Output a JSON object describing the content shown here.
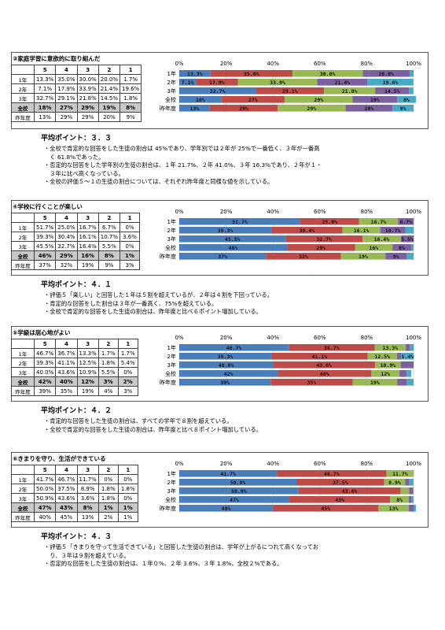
{
  "colors": {
    "s5": "#4a7ebb",
    "s4": "#be4b48",
    "s3": "#98b954",
    "s2": "#7d60a0",
    "s1": "#46aac5"
  },
  "axis_ticks": [
    "0%",
    "20%",
    "40%",
    "60%",
    "80%",
    "100%"
  ],
  "table_header": [
    "",
    "5",
    "4",
    "3",
    "2",
    "1"
  ],
  "sections": [
    {
      "title": "③家庭学習に意欲的に取り組んだ",
      "rows": [
        {
          "label": "1年",
          "v": [
            "13.3%",
            "35.0%",
            "30.0%",
            "20.0%",
            "1.7%"
          ]
        },
        {
          "label": "2年",
          "v": [
            "7.1%",
            "17.9%",
            "33.9%",
            "21.4%",
            "19.6%"
          ]
        },
        {
          "label": "3年",
          "v": [
            "32.7%",
            "29.1%",
            "21.8%",
            "14.5%",
            "1.8%"
          ]
        },
        {
          "label": "全校",
          "v": [
            "18%",
            "27%",
            "29%",
            "19%",
            "8%"
          ]
        },
        {
          "label": "昨年度",
          "v": [
            "13%",
            "29%",
            "29%",
            "20%",
            "9%"
          ]
        }
      ],
      "avg": "平均ポイント：３．３",
      "avg_unit": "ポイ\nント",
      "notes": [
        "・全校で肯定的な回答をした生徒の割合は 45%であり、学年別では２年が 25%で一番低く、３年が一番高",
        "　く 61.8%であった。",
        "・否定的な回答をした学年別の生徒の割合は、１年 21.7%、２年 41.0%、３年 16.3%であり、２年が１・",
        "　３年に比べ高くなっている。",
        "・全校の評価５～１の生徒の割合については、それぞれ昨年度と同様な値を示している。"
      ],
      "chart_data": {
        "type": "bar",
        "categories": [
          "1年",
          "2年",
          "3年",
          "全校",
          "昨年度"
        ],
        "series": [
          {
            "name": "5",
            "values": [
              13.3,
              7.1,
              32.7,
              18,
              13
            ],
            "labels": [
              "13.3%",
              "7.1%",
              "32.7%",
              "18%",
              "13%"
            ]
          },
          {
            "name": "4",
            "values": [
              35.0,
              17.9,
              29.1,
              27,
              29
            ],
            "labels": [
              "35.0%",
              "17.9%",
              "29.1%",
              "27%",
              "29%"
            ]
          },
          {
            "name": "3",
            "values": [
              30.0,
              33.9,
              21.8,
              29,
              29
            ],
            "labels": [
              "30.0%",
              "33.9%",
              "21.8%",
              "29%",
              "29%"
            ]
          },
          {
            "name": "2",
            "values": [
              20.0,
              21.4,
              14.5,
              19,
              20
            ],
            "labels": [
              "20.0%",
              "21.4%",
              "14.5%",
              "19%",
              "20%"
            ]
          },
          {
            "name": "1",
            "values": [
              1.7,
              19.6,
              1.8,
              8,
              9
            ],
            "labels": [
              "",
              "19.6%",
              "",
              "8%",
              "9%"
            ]
          }
        ],
        "xlim": [
          0,
          100
        ]
      }
    },
    {
      "title": "④学校に行くことが楽しい",
      "rows": [
        {
          "label": "1年",
          "v": [
            "51.7%",
            "25.0%",
            "16.7%",
            "6.7%",
            "0%"
          ]
        },
        {
          "label": "2年",
          "v": [
            "39.3%",
            "30.4%",
            "16.1%",
            "10.7%",
            "3.6%"
          ]
        },
        {
          "label": "3年",
          "v": [
            "45.5%",
            "32.7%",
            "16.4%",
            "5.5%",
            "0%"
          ]
        },
        {
          "label": "全校",
          "v": [
            "46%",
            "29%",
            "16%",
            "8%",
            "1%"
          ]
        },
        {
          "label": "昨年度",
          "v": [
            "37%",
            "32%",
            "19%",
            "9%",
            "3%"
          ]
        }
      ],
      "avg": "平均ポイント：４．１",
      "avg_unit": "ポイ\nント",
      "notes": [
        "・評価５「楽しい」と回答した１年は５割を超えているが、２年は４割を下回っている。",
        "・肯定的な回答をした割合は３年が一番高く、75%を超えている。",
        "・全校で肯定的な回答をした生徒の割合は、昨年度と比べ６ポイント増加している。"
      ],
      "chart_data": {
        "type": "bar",
        "categories": [
          "1年",
          "2年",
          "3年",
          "全校",
          "昨年度"
        ],
        "series": [
          {
            "name": "5",
            "values": [
              51.7,
              39.3,
              45.5,
              46,
              37
            ],
            "labels": [
              "51.7%",
              "39.3%",
              "45.5%",
              "46%",
              "37%"
            ]
          },
          {
            "name": "4",
            "values": [
              25.0,
              30.4,
              32.7,
              29,
              32
            ],
            "labels": [
              "25.0%",
              "30.4%",
              "32.7%",
              "29%",
              "32%"
            ]
          },
          {
            "name": "3",
            "values": [
              16.7,
              16.1,
              16.4,
              16,
              19
            ],
            "labels": [
              "16.7%",
              "16.1%",
              "16.4%",
              "16%",
              "19%"
            ]
          },
          {
            "name": "2",
            "values": [
              6.7,
              10.7,
              5.5,
              8,
              9
            ],
            "labels": [
              "6.7%",
              "10.7%",
              "5.5%",
              "8%",
              "9%"
            ]
          },
          {
            "name": "1",
            "values": [
              0,
              3.6,
              0,
              1,
              3
            ],
            "labels": [
              "",
              "",
              "",
              "",
              ""
            ]
          }
        ],
        "xlim": [
          0,
          100
        ]
      }
    },
    {
      "title": "⑤学級は居心地がよい",
      "rows": [
        {
          "label": "1年",
          "v": [
            "46.7%",
            "36.7%",
            "13.3%",
            "1.7%",
            "1.7%"
          ]
        },
        {
          "label": "2年",
          "v": [
            "39.3%",
            "41.1%",
            "12.5%",
            "1.8%",
            "5.4%"
          ]
        },
        {
          "label": "3年",
          "v": [
            "40.0%",
            "43.6%",
            "10.9%",
            "5.5%",
            "0%"
          ]
        },
        {
          "label": "全校",
          "v": [
            "42%",
            "40%",
            "12%",
            "3%",
            "2%"
          ]
        },
        {
          "label": "昨年度",
          "v": [
            "39%",
            "35%",
            "19%",
            "4%",
            "3%"
          ]
        }
      ],
      "avg": "平均ポイント：４．２",
      "avg_unit": "ポイ\nント",
      "notes": [
        "・肯定的な回答をした生徒の割合は、すべての学年で８割を超えている。",
        "・全校で肯定的な回答をした生徒の割合は、昨年度と比べ８ポイント増加している。"
      ],
      "chart_data": {
        "type": "bar",
        "categories": [
          "1年",
          "2年",
          "3年",
          "全校",
          "昨年度"
        ],
        "series": [
          {
            "name": "5",
            "values": [
              46.7,
              39.3,
              40.0,
              42,
              39
            ],
            "labels": [
              "46.7%",
              "39.3%",
              "40.0%",
              "42%",
              "39%"
            ]
          },
          {
            "name": "4",
            "values": [
              36.7,
              41.1,
              43.6,
              40,
              35
            ],
            "labels": [
              "36.7%",
              "41.1%",
              "43.6%",
              "40%",
              "35%"
            ]
          },
          {
            "name": "3",
            "values": [
              13.3,
              12.5,
              10.9,
              12,
              19
            ],
            "labels": [
              "13.3%",
              "12.5%",
              "10.9%",
              "12%",
              "19%"
            ]
          },
          {
            "name": "2",
            "values": [
              1.7,
              1.8,
              5.5,
              3,
              4
            ],
            "labels": [
              "",
              "",
              "",
              "",
              ""
            ]
          },
          {
            "name": "1",
            "values": [
              1.7,
              5.4,
              0,
              2,
              3
            ],
            "labels": [
              "",
              "5.4%",
              "",
              "",
              ""
            ]
          }
        ],
        "xlim": [
          0,
          100
        ]
      }
    },
    {
      "title": "⑥きまりを守り、生活ができている",
      "rows": [
        {
          "label": "1年",
          "v": [
            "41.7%",
            "46.7%",
            "11.7%",
            "0%",
            "0%"
          ]
        },
        {
          "label": "2年",
          "v": [
            "50.0%",
            "37.5%",
            "8.9%",
            "1.8%",
            "1.8%"
          ]
        },
        {
          "label": "3年",
          "v": [
            "50.9%",
            "43.6%",
            "3.6%",
            "1.8%",
            "0%"
          ]
        },
        {
          "label": "全校",
          "v": [
            "47%",
            "43%",
            "8%",
            "1%",
            "1%"
          ]
        },
        {
          "label": "昨年度",
          "v": [
            "40%",
            "45%",
            "13%",
            "2%",
            "1%"
          ]
        }
      ],
      "avg": "平均ポイント：４．３",
      "avg_unit": "ポイ\nント",
      "notes": [
        "・評価５「きまりを守って生活できている」と回答した生徒の割合は、学年が上がるにつれて高くなってお",
        "　り、３年は９割を超えている。",
        "・否定的な回答をした生徒の割合は、１年０%、２年 3.6%、３年 1.8%、全校２%である。"
      ],
      "chart_data": {
        "type": "bar",
        "categories": [
          "1年",
          "2年",
          "3年",
          "全校",
          "昨年度"
        ],
        "series": [
          {
            "name": "5",
            "values": [
              41.7,
              50.0,
              50.9,
              47,
              40
            ],
            "labels": [
              "41.7%",
              "50.0%",
              "50.9%",
              "47%",
              "40%"
            ]
          },
          {
            "name": "4",
            "values": [
              46.7,
              37.5,
              43.6,
              43,
              45
            ],
            "labels": [
              "46.7%",
              "37.5%",
              "43.6%",
              "43%",
              "45%"
            ]
          },
          {
            "name": "3",
            "values": [
              11.7,
              8.9,
              3.6,
              8,
              13
            ],
            "labels": [
              "11.7%",
              "8.9%",
              "",
              "8%",
              "13%"
            ]
          },
          {
            "name": "2",
            "values": [
              0,
              1.8,
              1.8,
              1,
              2
            ],
            "labels": [
              "",
              "",
              "",
              "",
              ""
            ]
          },
          {
            "name": "1",
            "values": [
              0,
              1.8,
              0,
              1,
              1
            ],
            "labels": [
              "",
              "",
              "",
              "",
              ""
            ]
          }
        ],
        "xlim": [
          0,
          100
        ]
      }
    }
  ]
}
